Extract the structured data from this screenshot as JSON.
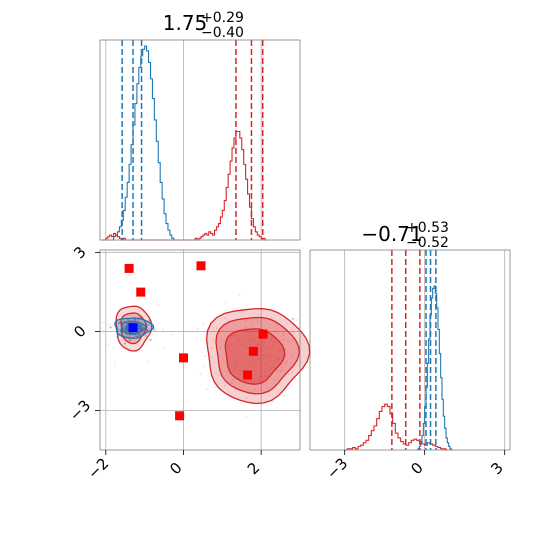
{
  "chart_data": {
    "type": "corner",
    "parameters": [
      "",
      ""
    ],
    "colors": {
      "blue": "#1f77b4",
      "red": "#d62728",
      "marker_red": "#ff0000",
      "marker_blue": "#0000ff",
      "grid": "#b0b0b0"
    },
    "panels": {
      "hist_x": {
        "title": {
          "value": "1.75",
          "upper": "+0.29",
          "lower": "−0.40"
        },
        "xlim": [
          -2.15,
          3.0
        ],
        "grid_x": [
          -2,
          0,
          2
        ],
        "blue_quantiles": [
          -1.58,
          -1.3,
          -1.08
        ],
        "red_quantiles": [
          1.35,
          1.75,
          2.04
        ],
        "blue_hist": {
          "start": -1.95,
          "step": 0.05,
          "counts": [
            0,
            0,
            0,
            2,
            3,
            5,
            8,
            12,
            18,
            26,
            35,
            46,
            58,
            70,
            83,
            95,
            105,
            112,
            116,
            118,
            115,
            108,
            98,
            86,
            73,
            60,
            47,
            35,
            25,
            16,
            10,
            6,
            3,
            1,
            0
          ]
        },
        "red_hist": {
          "start": -2.1,
          "step": 0.05,
          "counts": [
            0,
            0,
            1,
            2,
            3,
            2,
            4,
            3,
            2,
            1,
            0,
            1,
            0,
            0,
            0,
            0,
            0,
            0,
            0,
            0,
            0,
            0,
            0,
            0,
            0,
            0,
            0,
            0,
            0,
            0,
            0,
            0,
            0,
            0,
            0,
            0,
            0,
            0,
            0,
            0,
            0,
            0,
            0,
            0,
            0,
            0,
            0,
            0,
            1,
            0,
            1,
            2,
            3,
            4,
            3,
            5,
            4,
            3,
            6,
            8,
            10,
            14,
            18,
            24,
            32,
            40,
            48,
            56,
            62,
            66,
            66,
            62,
            55,
            46,
            37,
            28,
            20,
            13,
            8,
            5,
            3,
            2,
            1,
            1,
            0
          ]
        }
      },
      "hist_y": {
        "title": {
          "value": "−0.71",
          "upper": "+0.53",
          "lower": "−0.52"
        },
        "xlim": [
          -4.3,
          3.2
        ],
        "ticks": [
          -3,
          0,
          3
        ],
        "tick_labels": [
          "−3",
          "0",
          "3"
        ],
        "blue_quantiles": [
          0.05,
          0.22,
          0.42
        ],
        "red_quantiles": [
          -1.23,
          -0.71,
          -0.18
        ],
        "blue_hist": {
          "start": -0.3,
          "step": 0.05,
          "counts": [
            0,
            1,
            3,
            6,
            12,
            22,
            36,
            52,
            72,
            92,
            112,
            126,
            134,
            136,
            130,
            118,
            100,
            80,
            60,
            42,
            28,
            18,
            10,
            6,
            3,
            1,
            0
          ]
        },
        "red_hist": {
          "start": -3.0,
          "step": 0.1,
          "counts": [
            0,
            1,
            1,
            2,
            1,
            3,
            4,
            6,
            8,
            12,
            16,
            20,
            26,
            32,
            36,
            38,
            36,
            30,
            22,
            14,
            10,
            7,
            5,
            4,
            6,
            8,
            9,
            8,
            7,
            5,
            4,
            6,
            5,
            4,
            3,
            2,
            1,
            1,
            0
          ]
        }
      },
      "scatter": {
        "xlim": [
          -2.15,
          3.0
        ],
        "ylim": [
          -4.5,
          3.1
        ],
        "xticks": [
          -2,
          0,
          2
        ],
        "xtick_labels": [
          "−2",
          "0",
          "2"
        ],
        "yticks": [
          -3,
          0,
          3
        ],
        "ytick_labels": [
          "−3",
          "0",
          "3"
        ],
        "blue_center": [
          -1.3,
          0.12
        ],
        "red_center": [
          1.85,
          -0.85
        ],
        "red_markers": [
          [
            -1.4,
            2.4
          ],
          [
            -1.1,
            1.5
          ],
          [
            0.45,
            2.5
          ],
          [
            0.0,
            -1.0
          ],
          [
            -0.1,
            -3.2
          ],
          [
            2.05,
            -0.1
          ],
          [
            1.8,
            -0.75
          ],
          [
            1.65,
            -1.65
          ]
        ],
        "blue_markers": [
          [
            -1.3,
            0.15
          ]
        ],
        "red_contours": [
          {
            "cx": 1.85,
            "cy": -0.85,
            "rx": 1.3,
            "ry": 1.8,
            "opacity": 0.4
          },
          {
            "cx": 1.85,
            "cy": -0.85,
            "rx": 1.05,
            "ry": 1.45,
            "opacity": 0.55
          },
          {
            "cx": 1.8,
            "cy": -0.9,
            "rx": 0.75,
            "ry": 1.05,
            "opacity": 0.75
          },
          {
            "cx": -1.3,
            "cy": 0.15,
            "rx": 0.45,
            "ry": 0.85,
            "opacity": 0.3
          },
          {
            "cx": -1.3,
            "cy": 0.15,
            "rx": 0.32,
            "ry": 0.58,
            "opacity": 0.45
          }
        ],
        "blue_contours": [
          {
            "cx": -1.3,
            "cy": 0.15,
            "rx": 0.48,
            "ry": 0.38
          },
          {
            "cx": -1.3,
            "cy": 0.15,
            "rx": 0.3,
            "ry": 0.24
          },
          {
            "cx": -1.3,
            "cy": 0.15,
            "rx": 0.16,
            "ry": 0.13
          }
        ]
      }
    }
  }
}
